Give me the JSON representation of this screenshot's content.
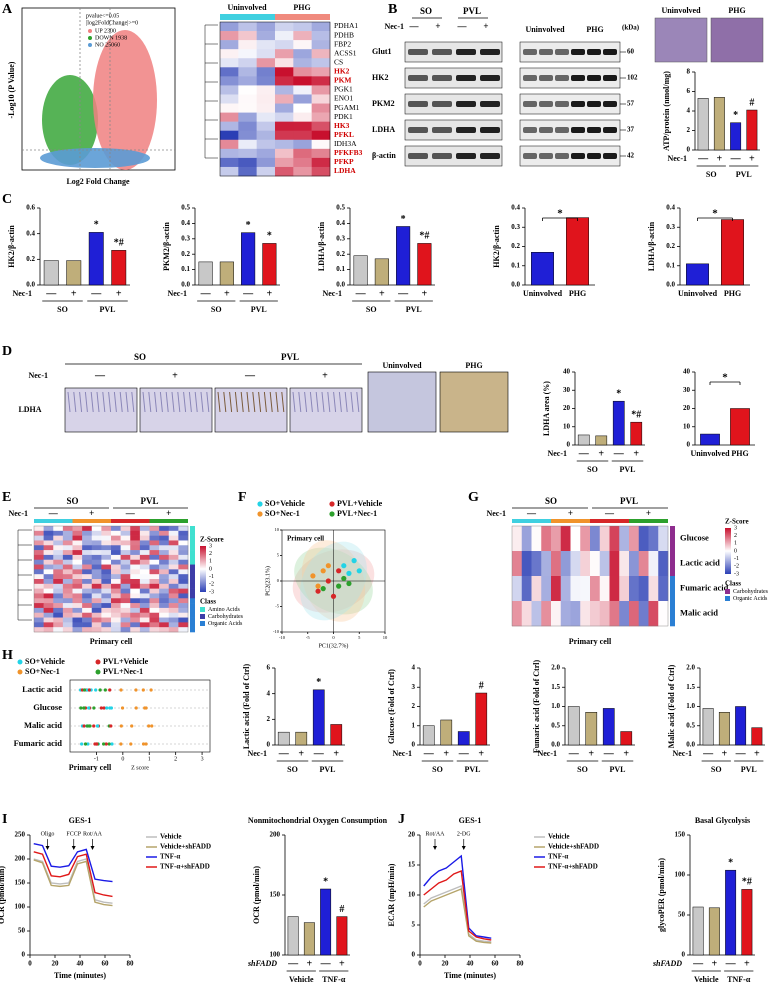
{
  "panels": {
    "A": {
      "label": "A",
      "legend_title": [
        "pvalue<=0.05",
        "|log2FoldChange|>=0"
      ],
      "legend": [
        {
          "text": "UP 2300",
          "color": "#f08080"
        },
        {
          "text": "DOWN 1938",
          "color": "#2ca02c"
        },
        {
          "text": "NO 25060",
          "color": "#5b9bd5"
        }
      ],
      "ylabel": "-Log10 (P Value)",
      "xlabel": "Log2 Fold Change",
      "heatmap_groups": [
        {
          "text": "Uninvolved",
          "color": "#3fd0e0"
        },
        {
          "text": "PHG",
          "color": "#f08a7e"
        }
      ],
      "genes": [
        {
          "name": "PDHA1",
          "highlight": false
        },
        {
          "name": "PDHB",
          "highlight": false
        },
        {
          "name": "FBP2",
          "highlight": false
        },
        {
          "name": "ACSS1",
          "highlight": false
        },
        {
          "name": "CS",
          "highlight": false
        },
        {
          "name": "HK2",
          "highlight": true
        },
        {
          "name": "PKM",
          "highlight": true
        },
        {
          "name": "PGK1",
          "highlight": false
        },
        {
          "name": "ENO1",
          "highlight": false
        },
        {
          "name": "PGAM1",
          "highlight": false
        },
        {
          "name": "PDK1",
          "highlight": false
        },
        {
          "name": "HK3",
          "highlight": true
        },
        {
          "name": "PFKL",
          "highlight": true
        },
        {
          "name": "IDH3A",
          "highlight": false
        },
        {
          "name": "PFKFB3",
          "highlight": true
        },
        {
          "name": "PFKP",
          "highlight": true
        },
        {
          "name": "LDHA",
          "highlight": true
        }
      ]
    },
    "B": {
      "label": "B",
      "groups": [
        "SO",
        "PVL"
      ],
      "row_label": "Nec-1",
      "signs": [
        "—",
        "+",
        "—",
        "+"
      ],
      "groups2": [
        "Uninvolved",
        "PHG"
      ],
      "unit": "(kDa)",
      "proteins": [
        {
          "name": "Glut1",
          "kda": "60"
        },
        {
          "name": "HK2",
          "kda": "102"
        },
        {
          "name": "PKM2",
          "kda": "57"
        },
        {
          "name": "LDHA",
          "kda": "37"
        },
        {
          "name": "β-actin",
          "kda": "42"
        }
      ],
      "images": [
        "Uninvolved",
        "PHG"
      ]
    },
    "C": {
      "label": "C"
    },
    "D": {
      "label": "D",
      "groups": [
        "SO",
        "PVL"
      ],
      "row_label": "Nec-1",
      "signs": [
        "—",
        "+",
        "—",
        "+"
      ],
      "stain": "LDHA",
      "images": [
        "Uninvolved",
        "PHG"
      ]
    },
    "E": {
      "label": "E",
      "groups": [
        "SO",
        "PVL"
      ],
      "row_label": "Nec-1",
      "signs": [
        "—",
        "+",
        "—",
        "+"
      ],
      "zscore": "Z-Score",
      "zscale": [
        3,
        2,
        1,
        0,
        -1,
        -2,
        -3
      ],
      "class_title": "Class",
      "classes": [
        {
          "name": "Amino Acids",
          "color": "#40e0d0"
        },
        {
          "name": "Carbohydrates",
          "color": "#3d3da8"
        },
        {
          "name": "Organic Acids",
          "color": "#2a7fd4"
        }
      ],
      "caption": "Primary cell"
    },
    "F": {
      "label": "F"
    },
    "G": {
      "label": "G",
      "groups": [
        "SO",
        "PVL"
      ],
      "row_label": "Nec-1",
      "signs": [
        "—",
        "+",
        "—",
        "+"
      ],
      "metabolites": [
        "Glucose",
        "Lactic acid",
        "Fumaric acid",
        "Malic acid"
      ],
      "zscore": "Z-Score",
      "zscale": [
        3,
        2,
        1,
        0,
        -1,
        -2,
        -3
      ],
      "class_title": "Class",
      "classes": [
        {
          "name": "Carbohydrates",
          "color": "#8e2d8e"
        },
        {
          "name": "Organic Acids",
          "color": "#2a7fd4"
        }
      ],
      "caption": "Primary cell"
    },
    "H": {
      "label": "H",
      "legend": [
        {
          "text": "SO+Vehicle",
          "color": "#22d3e6"
        },
        {
          "text": "PVL+Vehicle",
          "color": "#d62728"
        },
        {
          "text": "SO+Nec-1",
          "color": "#f0932b"
        },
        {
          "text": "PVL+Nec-1",
          "color": "#2ca02c"
        }
      ],
      "metabolites": [
        "Lactic acid",
        "Glucose",
        "Malic acid",
        "Fumaric acid"
      ],
      "xticks": [
        -1,
        0,
        1,
        2,
        3
      ],
      "xlim": [
        -2,
        3.3
      ],
      "caption": "Primary cell",
      "xlabel": "Z score"
    },
    "I": {
      "label": "I"
    },
    "J": {
      "label": "J"
    }
  },
  "chart_data": [
    {
      "type": "bar",
      "ylabel": "ATP/protein (nmol/mg)",
      "categories": [
        "—",
        "+",
        "—",
        "+"
      ],
      "groups": [
        "SO",
        "PVL"
      ],
      "row_label": "Nec-1",
      "values": [
        5.3,
        5.4,
        2.8,
        4.1
      ],
      "colors": [
        "#c8c8c8",
        "#bfae7a",
        "#1f1fd6",
        "#e0141c"
      ],
      "ylim": [
        0,
        8
      ],
      "yticks": [
        0,
        2,
        4,
        6,
        8
      ],
      "annotations": [
        {
          "index": 2,
          "text": "*"
        },
        {
          "index": 3,
          "text": "#"
        }
      ]
    },
    {
      "type": "bar",
      "ylabel": "HK2/β-actin",
      "categories": [
        "—",
        "+",
        "—",
        "+"
      ],
      "groups": [
        "SO",
        "PVL"
      ],
      "row_label": "Nec-1",
      "values": [
        0.19,
        0.19,
        0.41,
        0.27
      ],
      "colors": [
        "#c8c8c8",
        "#bfae7a",
        "#1f1fd6",
        "#e0141c"
      ],
      "ylim": [
        0,
        0.6
      ],
      "yticks": [
        {
          "value": 0,
          "label": "0.0"
        },
        0.2,
        0.4,
        0.6
      ],
      "annotations": [
        {
          "index": 2,
          "text": "*"
        },
        {
          "index": 3,
          "text": "*#"
        }
      ]
    },
    {
      "type": "bar",
      "ylabel": "PKM2/β-actin",
      "categories": [
        "—",
        "+",
        "—",
        "+"
      ],
      "groups": [
        "SO",
        "PVL"
      ],
      "row_label": "Nec-1",
      "values": [
        0.15,
        0.15,
        0.34,
        0.27
      ],
      "colors": [
        "#c8c8c8",
        "#bfae7a",
        "#1f1fd6",
        "#e0141c"
      ],
      "ylim": [
        0,
        0.5
      ],
      "yticks": [
        {
          "value": 0,
          "label": "0.0"
        },
        0.1,
        0.2,
        0.3,
        0.4,
        0.5
      ],
      "annotations": [
        {
          "index": 2,
          "text": "*"
        },
        {
          "index": 3,
          "text": "*"
        }
      ]
    },
    {
      "type": "bar",
      "ylabel": "LDHA/β-actin",
      "categories": [
        "—",
        "+",
        "—",
        "+"
      ],
      "groups": [
        "SO",
        "PVL"
      ],
      "row_label": "Nec-1",
      "values": [
        0.19,
        0.17,
        0.38,
        0.27
      ],
      "colors": [
        "#c8c8c8",
        "#bfae7a",
        "#1f1fd6",
        "#e0141c"
      ],
      "ylim": [
        0,
        0.5
      ],
      "yticks": [
        {
          "value": 0,
          "label": "0.0"
        },
        0.1,
        0.2,
        0.3,
        0.4,
        0.5
      ],
      "annotations": [
        {
          "index": 2,
          "text": "*"
        },
        {
          "index": 3,
          "text": "*#"
        }
      ]
    },
    {
      "type": "bar",
      "ylabel": "HK2/β-actin",
      "categories": [
        "Uninvolved",
        "PHG"
      ],
      "values": [
        0.17,
        0.35
      ],
      "colors": [
        "#1f1fd6",
        "#e0141c"
      ],
      "ylim": [
        0,
        0.4
      ],
      "yticks": [
        {
          "value": 0,
          "label": "0.0"
        },
        0.1,
        0.2,
        0.3,
        0.4
      ],
      "bracket": "*"
    },
    {
      "type": "bar",
      "ylabel": "LDHA/β-actin",
      "categories": [
        "Uninvolved",
        "PHG"
      ],
      "values": [
        0.11,
        0.34
      ],
      "colors": [
        "#1f1fd6",
        "#e0141c"
      ],
      "ylim": [
        0,
        0.4
      ],
      "yticks": [
        {
          "value": 0,
          "label": "0.0"
        },
        0.1,
        0.2,
        0.3,
        0.4
      ],
      "bracket": "*"
    },
    {
      "type": "bar",
      "ylabel": "LDHA area (%)",
      "categories": [
        "—",
        "+",
        "—",
        "+"
      ],
      "groups": [
        "SO",
        "PVL"
      ],
      "row_label": "Nec-1",
      "values": [
        5.5,
        5,
        24,
        12.5
      ],
      "colors": [
        "#c8c8c8",
        "#bfae7a",
        "#1f1fd6",
        "#e0141c"
      ],
      "ylim": [
        0,
        40
      ],
      "yticks": [
        0,
        10,
        20,
        30,
        40
      ],
      "annotations": [
        {
          "index": 2,
          "text": "*"
        },
        {
          "index": 3,
          "text": "*#"
        }
      ]
    },
    {
      "type": "bar",
      "categories": [
        "Uninvolved",
        "PHG"
      ],
      "values": [
        6,
        20
      ],
      "colors": [
        "#1f1fd6",
        "#e0141c"
      ],
      "ylim": [
        0,
        40
      ],
      "yticks": [
        0,
        10,
        20,
        30,
        40
      ],
      "bracket": "*"
    },
    {
      "type": "scatter",
      "xlabel": "PC1(32.7%)",
      "ylabel": "PC2(23.1%)",
      "annotation": "Primary cell",
      "xlim": [
        -10,
        10
      ],
      "ylim": [
        -10,
        10
      ],
      "xticks": [
        -10,
        -5,
        0,
        5,
        10
      ],
      "yticks": [
        -10,
        -5,
        0,
        5,
        10
      ],
      "series": [
        {
          "name": "SO+Vehicle",
          "color": "#22d3e6",
          "x": [
            2,
            4,
            3,
            5
          ],
          "values": [
            3,
            4,
            1.5,
            2
          ]
        },
        {
          "name": "PVL+Vehicle",
          "color": "#d62728",
          "x": [
            -3,
            -1,
            1,
            0
          ],
          "values": [
            -2,
            0,
            2,
            -3
          ]
        },
        {
          "name": "SO+Nec-1",
          "color": "#f0932b",
          "x": [
            -4,
            -2,
            -3,
            -1
          ],
          "values": [
            1,
            2,
            -1,
            3
          ]
        },
        {
          "name": "PVL+Nec-1",
          "color": "#2ca02c",
          "x": [
            1,
            3,
            -2,
            2
          ],
          "values": [
            -1,
            -0.5,
            -1.5,
            0.5
          ]
        }
      ]
    },
    {
      "type": "bar",
      "ylabel": "Lactic acid (Fold of Ctrl)",
      "categories": [
        "—",
        "+",
        "—",
        "+"
      ],
      "groups": [
        "SO",
        "PVL"
      ],
      "row_label": "Nec-1",
      "values": [
        1,
        1,
        4.3,
        1.6
      ],
      "colors": [
        "#c8c8c8",
        "#bfae7a",
        "#1f1fd6",
        "#e0141c"
      ],
      "ylim": [
        0,
        6
      ],
      "yticks": [
        0,
        2,
        4,
        6
      ],
      "annotations": [
        {
          "index": 2,
          "text": "*"
        }
      ]
    },
    {
      "type": "bar",
      "ylabel": "Glucose (Fold of Ctrl)",
      "categories": [
        "—",
        "+",
        "—",
        "+"
      ],
      "groups": [
        "SO",
        "PVL"
      ],
      "row_label": "Nec-1",
      "values": [
        1,
        1.3,
        0.7,
        2.7
      ],
      "colors": [
        "#c8c8c8",
        "#bfae7a",
        "#1f1fd6",
        "#e0141c"
      ],
      "ylim": [
        0,
        4
      ],
      "yticks": [
        0,
        1,
        2,
        3,
        4
      ],
      "annotations": [
        {
          "index": 3,
          "text": "#"
        }
      ]
    },
    {
      "type": "bar",
      "ylabel": "Fumaric acid (Fold of Ctrl)",
      "categories": [
        "—",
        "+",
        "—",
        "+"
      ],
      "groups": [
        "SO",
        "PVL"
      ],
      "row_label": "Nec-1",
      "values": [
        1,
        0.85,
        0.95,
        0.35
      ],
      "colors": [
        "#c8c8c8",
        "#bfae7a",
        "#1f1fd6",
        "#e0141c"
      ],
      "ylim": [
        0,
        2
      ],
      "yticks": [
        {
          "value": 0,
          "label": "0.0"
        },
        0.5,
        {
          "value": 1,
          "label": "1.0"
        },
        1.5,
        {
          "value": 2,
          "label": "2.0"
        }
      ]
    },
    {
      "type": "bar",
      "ylabel": "Malic acid (Fold of Ctrl)",
      "categories": [
        "—",
        "+",
        "—",
        "+"
      ],
      "groups": [
        "SO",
        "PVL"
      ],
      "row_label": "Nec-1",
      "values": [
        0.95,
        0.85,
        1,
        0.45
      ],
      "colors": [
        "#c8c8c8",
        "#bfae7a",
        "#1f1fd6",
        "#e0141c"
      ],
      "ylim": [
        0,
        2
      ],
      "yticks": [
        {
          "value": 0,
          "label": "0.0"
        },
        0.5,
        {
          "value": 1,
          "label": "1.0"
        },
        1.5,
        {
          "value": 2,
          "label": "2.0"
        }
      ]
    },
    {
      "type": "line",
      "title": "GES-1",
      "ylabel": "OCR (pmol/min)",
      "xlabel": "Time (minutes)",
      "x": [
        3,
        10,
        17,
        24,
        31,
        38,
        45,
        52,
        59,
        66
      ],
      "xlim": [
        0,
        80
      ],
      "xticks": [
        0,
        20,
        40,
        60,
        80
      ],
      "ylim": [
        0,
        250
      ],
      "yticks": [
        0,
        50,
        100,
        150,
        200,
        250
      ],
      "annotations": [
        {
          "x": 14,
          "text": "Oligo"
        },
        {
          "x": 35,
          "text": "FCCP"
        },
        {
          "x": 50,
          "text": "Rot/AA"
        }
      ],
      "series": [
        {
          "name": "Vehicle",
          "color": "#bdbdbd",
          "values": [
            200,
            195,
            150,
            148,
            150,
            195,
            200,
            115,
            110,
            108
          ]
        },
        {
          "name": "Vehicle+shFADD",
          "color": "#b5a46a",
          "values": [
            198,
            192,
            145,
            143,
            145,
            190,
            195,
            110,
            105,
            103
          ]
        },
        {
          "name": "TNF-α",
          "color": "#1a1ae6",
          "values": [
            232,
            228,
            185,
            183,
            186,
            215,
            220,
            158,
            155,
            153
          ]
        },
        {
          "name": "TNF-α+shFADD",
          "color": "#e01818",
          "values": [
            215,
            210,
            165,
            163,
            168,
            205,
            210,
            130,
            125,
            122
          ]
        }
      ]
    },
    {
      "type": "bar",
      "title": "Nonmitochondrial Oxygen Consumption",
      "ylabel": "OCR (pmol/min)",
      "categories": [
        "—",
        "+",
        "—",
        "+"
      ],
      "groups": [
        "Vehicle",
        "TNF-α"
      ],
      "row_label": "shFADD",
      "values": [
        132,
        127,
        155,
        132
      ],
      "colors": [
        "#c8c8c8",
        "#bfae7a",
        "#1f1fd6",
        "#e0141c"
      ],
      "ylim": [
        100,
        200
      ],
      "yticks": [
        100,
        150,
        200
      ],
      "annotations": [
        {
          "index": 2,
          "text": "*"
        },
        {
          "index": 3,
          "text": "#"
        }
      ]
    },
    {
      "type": "line",
      "title": "GES-1",
      "ylabel": "ECAR (mpH/min)",
      "xlabel": "Time (minutes)",
      "x": [
        3,
        9,
        15,
        21,
        27,
        33,
        39,
        45,
        51,
        57
      ],
      "xlim": [
        0,
        80
      ],
      "xticks": [
        0,
        20,
        40,
        60,
        80
      ],
      "ylim": [
        0,
        20
      ],
      "yticks": [
        0,
        5,
        10,
        15,
        20
      ],
      "annotations": [
        {
          "x": 12,
          "text": "Rot/AA"
        },
        {
          "x": 35,
          "text": "2-DG"
        }
      ],
      "series": [
        {
          "name": "Vehicle",
          "color": "#bdbdbd",
          "values": [
            8.5,
            9.5,
            10,
            10.5,
            11,
            11.5,
            3.5,
            2.5,
            2.3,
            2.2
          ]
        },
        {
          "name": "Vehicle+shFADD",
          "color": "#b5a46a",
          "values": [
            8,
            9,
            9.5,
            10,
            10.5,
            11,
            3.2,
            2.3,
            2.1,
            2
          ]
        },
        {
          "name": "TNF-α",
          "color": "#1a1ae6",
          "values": [
            11.5,
            13,
            14,
            14.5,
            15.5,
            16.5,
            4.5,
            3.2,
            3,
            2.8
          ]
        },
        {
          "name": "TNF-α+shFADD",
          "color": "#e01818",
          "values": [
            10,
            11,
            12,
            12.5,
            13.5,
            14,
            4,
            3,
            2.7,
            2.5
          ]
        }
      ]
    },
    {
      "type": "bar",
      "title": "Basal Glycolysis",
      "ylabel": "glycoPER (pmol/min)",
      "categories": [
        "—",
        "+",
        "—",
        "+"
      ],
      "groups": [
        "Vehicle",
        "TNF-α"
      ],
      "row_label": "shFADD",
      "values": [
        60,
        59,
        106,
        82
      ],
      "colors": [
        "#c8c8c8",
        "#bfae7a",
        "#1f1fd6",
        "#e0141c"
      ],
      "ylim": [
        0,
        150
      ],
      "yticks": [
        0,
        50,
        100,
        150
      ],
      "annotations": [
        {
          "index": 2,
          "text": "*"
        },
        {
          "index": 3,
          "text": "*#"
        }
      ]
    }
  ]
}
